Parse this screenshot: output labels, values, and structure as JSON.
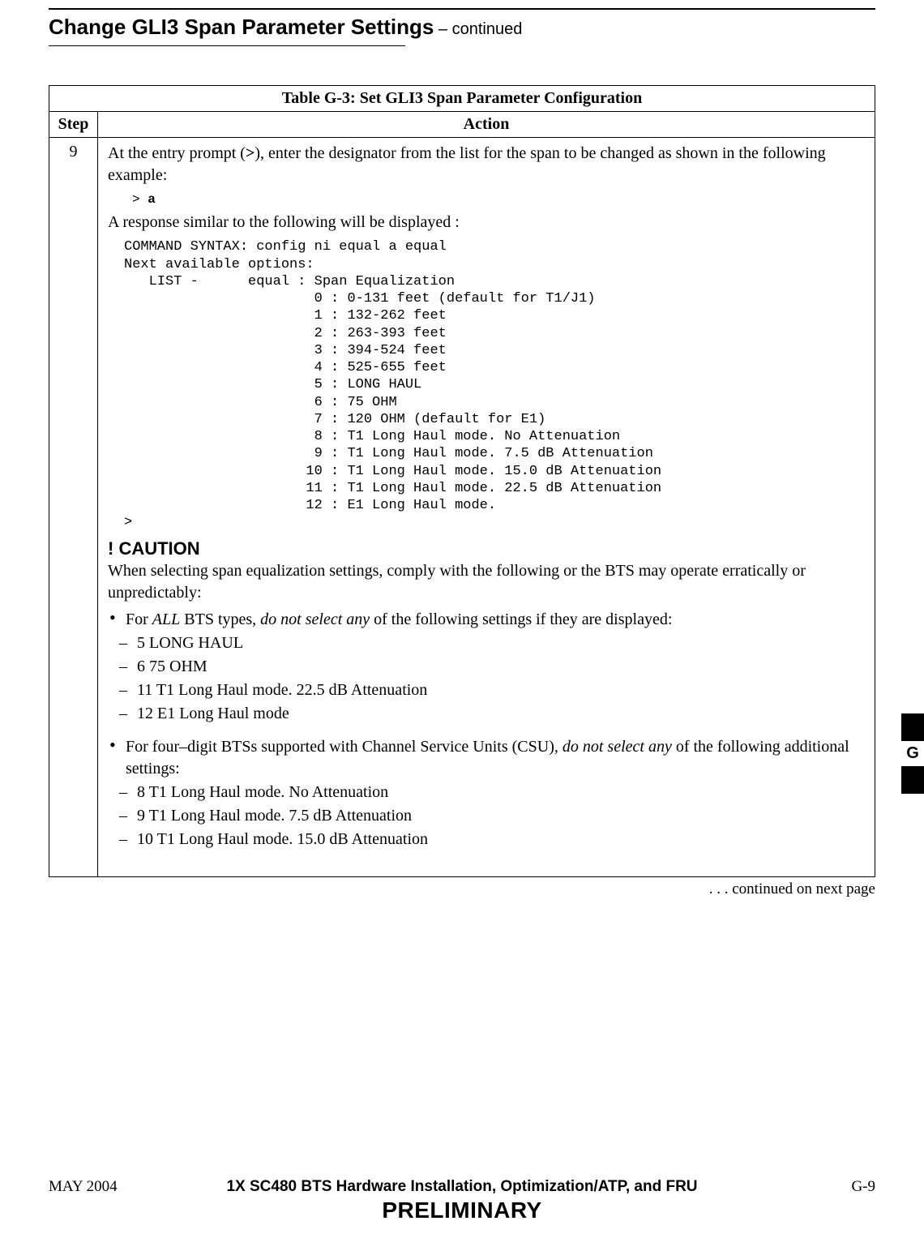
{
  "header": {
    "title": "Change GLI3 Span Parameter Settings",
    "continued": "  – continued"
  },
  "table": {
    "caption_label": "Table G-3:",
    "caption_rest": " Set GLI3 Span Parameter Configuration",
    "col_step": "Step",
    "col_action": "Action",
    "step_num": "9",
    "intro_1a": "At the entry prompt (",
    "intro_1_gt": ">",
    "intro_1b": "), enter the designator from the list for the span to be changed as shown in the following example:",
    "prompt_line": "> a",
    "intro_2": "A response similar to the following will be displayed :",
    "code_block": "COMMAND SYNTAX: config ni equal a equal\nNext available options:\n   LIST -      equal : Span Equalization\n                       0 : 0-131 feet (default for T1/J1)\n                       1 : 132-262 feet\n                       2 : 263-393 feet\n                       3 : 394-524 feet\n                       4 : 525-655 feet\n                       5 : LONG HAUL\n                       6 : 75 OHM\n                       7 : 120 OHM (default for E1)\n                       8 : T1 Long Haul mode. No Attenuation\n                       9 : T1 Long Haul mode. 7.5 dB Attenuation\n                      10 : T1 Long Haul mode. 15.0 dB Attenuation\n                      11 : T1 Long Haul mode. 22.5 dB Attenuation\n                      12 : E1 Long Haul mode.\n>",
    "caution_title": "! CAUTION",
    "caution_p": "When selecting span equalization settings, comply with the following or the BTS may operate erratically or unpredictably:",
    "bul1_a": "For ",
    "bul1_all": "ALL",
    "bul1_b": " BTS types, ",
    "bul1_dns": "do not select any",
    "bul1_c": " of the following settings if they are displayed:",
    "d1": "5   LONG HAUL",
    "d2": "6   75 OHM",
    "d3": "11  T1 Long Haul mode.  22.5 dB Attenuation",
    "d4": "12  E1 Long Haul mode",
    "bul2_a": "For four–digit BTSs supported with Channel Service Units (CSU), ",
    "bul2_dns": "do not select any",
    "bul2_b": " of the following additional settings:",
    "d5": "8   T1 Long Haul mode.  No Attenuation",
    "d6": "9   T1 Long Haul mode.  7.5 dB Attenuation",
    "d7": "10  T1 Long Haul mode.  15.0 dB Attenuation"
  },
  "continued_text": ". . . continued on next page",
  "side_tab": "G",
  "footer": {
    "left": "MAY 2004",
    "mid": "1X SC480 BTS Hardware Installation, Optimization/ATP, and FRU",
    "right": "G-9",
    "prelim": "PRELIMINARY"
  }
}
